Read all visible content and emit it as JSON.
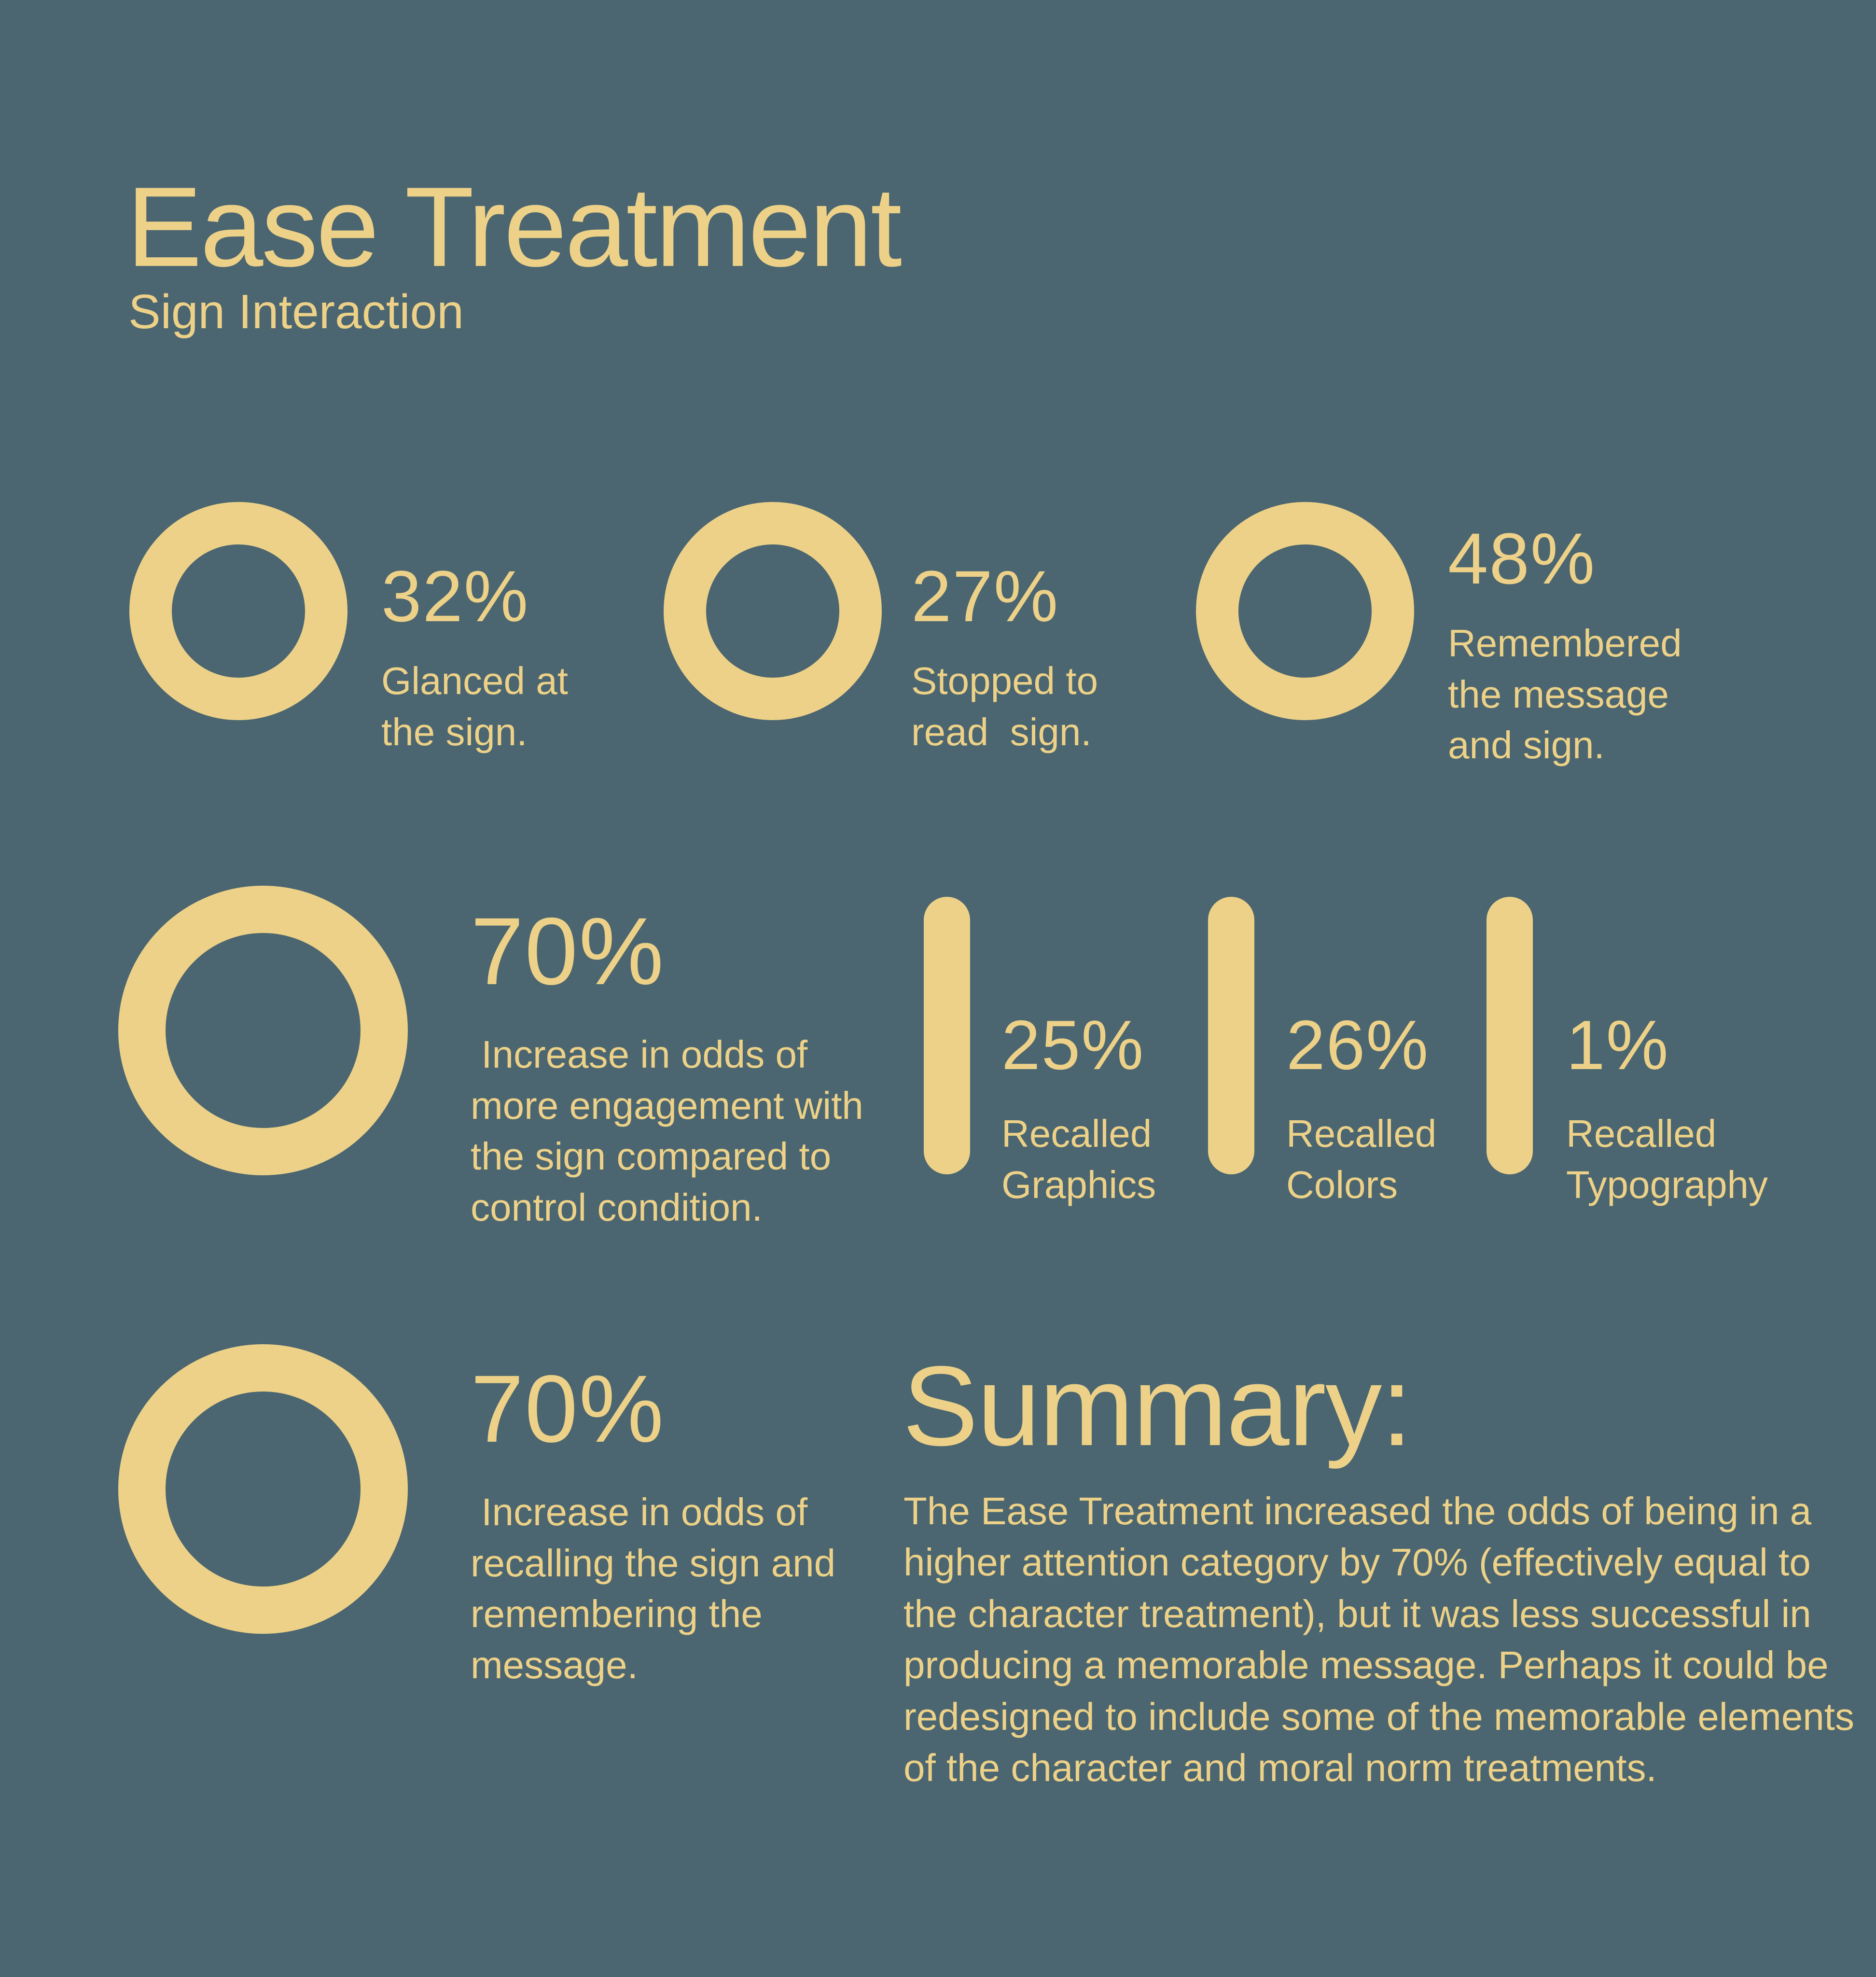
{
  "page": {
    "background_color": "#4B6670",
    "accent_color": "#EDD188"
  },
  "header": {
    "title": "Ease Treatment",
    "subtitle": "Sign Interaction"
  },
  "stats_row1": [
    {
      "value": "32%",
      "desc": "Glanced at\nthe sign."
    },
    {
      "value": "27%",
      "desc": "Stopped to\nread  sign."
    },
    {
      "value": "48%",
      "desc": "Remembered\nthe message\nand sign."
    }
  ],
  "engagement": {
    "value": "70%",
    "desc": " Increase in odds of\nmore engagement with\nthe sign compared to\ncontrol condition."
  },
  "bars": [
    {
      "value": "25%",
      "desc": "Recalled\nGraphics"
    },
    {
      "value": "26%",
      "desc": "Recalled\nColors"
    },
    {
      "value": "1%",
      "desc": "Recalled\nTypography"
    }
  ],
  "recall": {
    "value": "70%",
    "desc": " Increase in odds of\nrecalling the sign and\nremembering the\nmessage."
  },
  "summary": {
    "heading": "Summary:",
    "body": "The Ease Treatment increased the odds of being in a\nhigher attention category by 70% (effectively equal to\nthe character treatment), but it was less successful in\nproducing a memorable message. Perhaps it could be\nredesigned to include some of the memorable elements\nof the character and moral norm treatments."
  },
  "chart_data": {
    "type": "table",
    "title": "Ease Treatment — Sign Interaction",
    "columns": [
      "metric",
      "value_percent"
    ],
    "rows": [
      [
        "Glanced at the sign",
        32
      ],
      [
        "Stopped to read sign",
        27
      ],
      [
        "Remembered the message and sign",
        48
      ],
      [
        "Increase in odds of more engagement with the sign compared to control condition",
        70
      ],
      [
        "Recalled Graphics",
        25
      ],
      [
        "Recalled Colors",
        26
      ],
      [
        "Recalled Typography",
        1
      ],
      [
        "Increase in odds of recalling the sign and remembering the message",
        70
      ]
    ]
  }
}
